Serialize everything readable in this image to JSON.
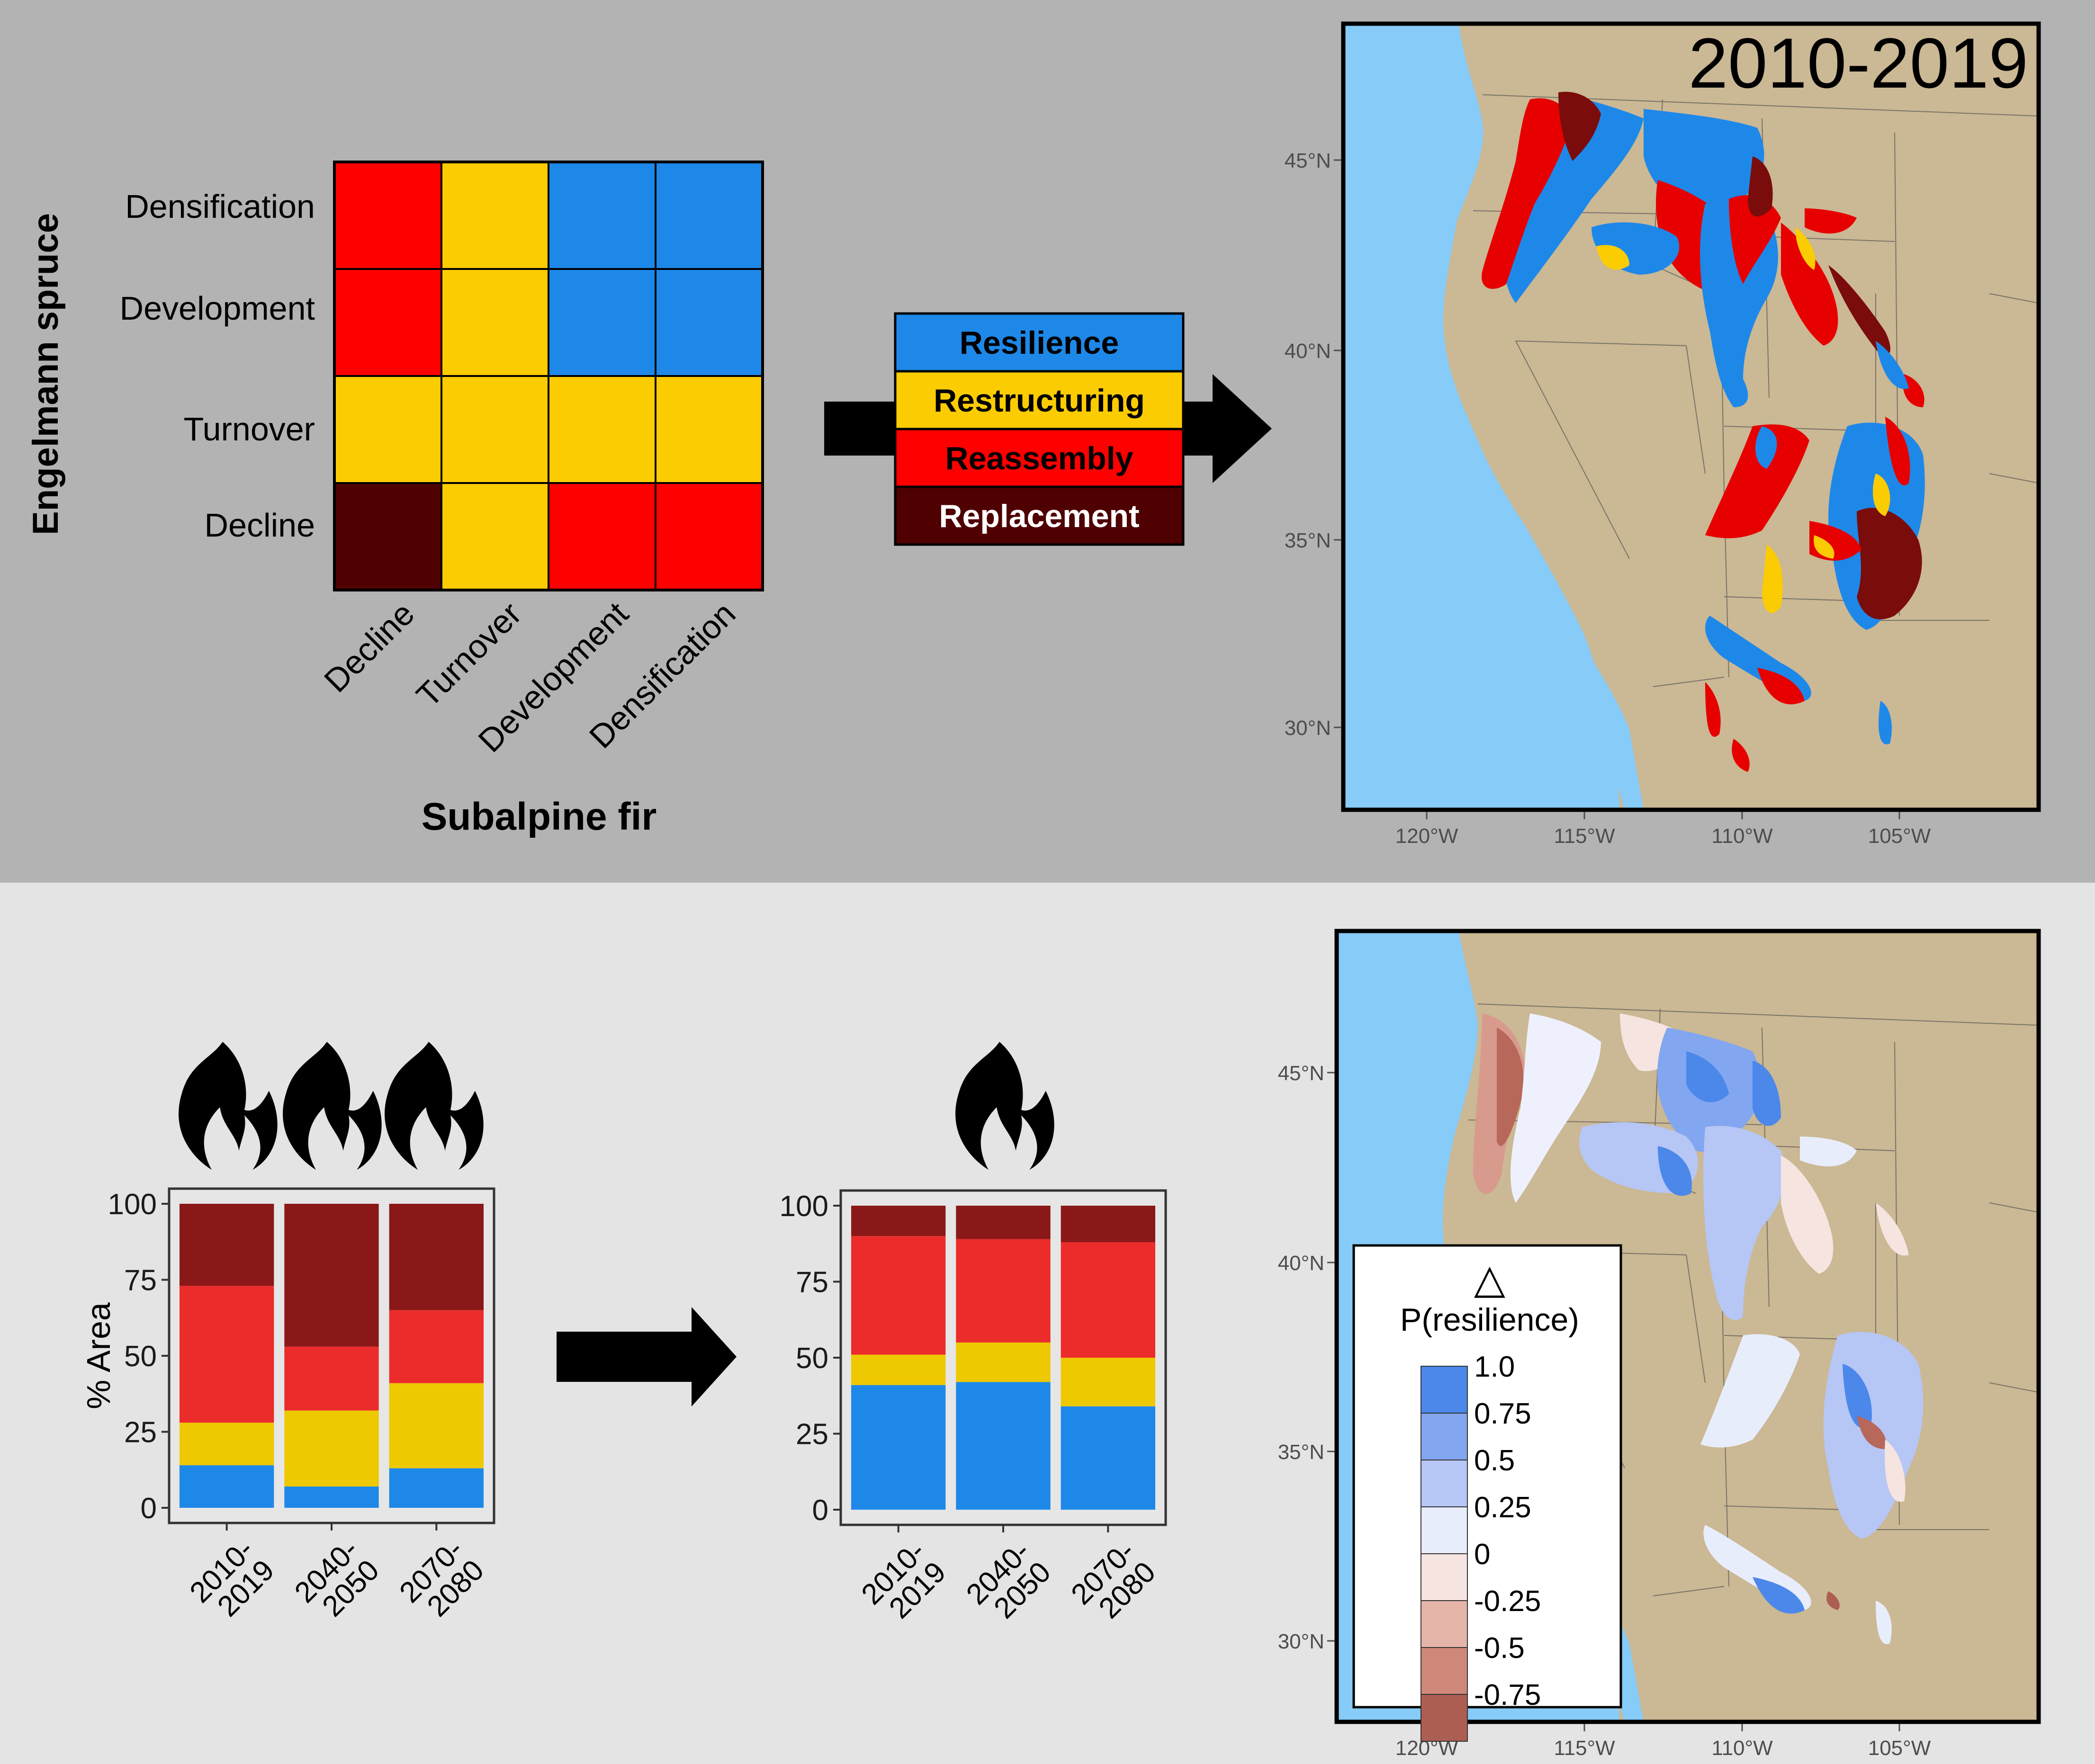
{
  "colors": {
    "resilience": "#1e88e9",
    "restructuring": "#fccc03",
    "reassembly": "#ff0000",
    "replacement": "#4f0000",
    "bar_resilience": "#1e88e9",
    "bar_restructuring": "#eec800",
    "bar_reassembly": "#ec2b2b",
    "bar_replacement": "#8b1818",
    "ocean": "#87cbf8",
    "land": "#cbb894"
  },
  "matrix": {
    "y_title": "Engelmann spruce",
    "x_title": "Subalpine fir",
    "row_labels": [
      "Densification",
      "Development",
      "Turnover",
      "Decline"
    ],
    "col_labels": [
      "Decline",
      "Turnover",
      "Development",
      "Densification"
    ],
    "cells": [
      [
        "reassembly",
        "restructuring",
        "resilience",
        "resilience"
      ],
      [
        "reassembly",
        "restructuring",
        "resilience",
        "resilience"
      ],
      [
        "restructuring",
        "restructuring",
        "restructuring",
        "restructuring"
      ],
      [
        "replacement",
        "restructuring",
        "reassembly",
        "reassembly"
      ]
    ]
  },
  "legend": {
    "items": [
      {
        "label": "Resilience",
        "key": "resilience",
        "text_color": "#000000"
      },
      {
        "label": "Restructuring",
        "key": "restructuring",
        "text_color": "#000000"
      },
      {
        "label": "Reassembly",
        "key": "reassembly",
        "text_color": "#000000"
      },
      {
        "label": "Replacement",
        "key": "replacement",
        "text_color": "#ffffff"
      }
    ]
  },
  "map_top": {
    "title": "2010-2019",
    "lat_labels": [
      "45°N",
      "40°N",
      "35°N",
      "30°N"
    ],
    "lon_labels": [
      "120°W",
      "115°W",
      "110°W",
      "105°W"
    ]
  },
  "map_bottom": {
    "lat_labels": [
      "45°N",
      "40°N",
      "35°N",
      "30°N"
    ],
    "lon_labels": [
      "120°W",
      "115°W",
      "110°W",
      "105°W"
    ],
    "legend_symbol": "△",
    "legend_title": "P(resilience)",
    "legend_values": [
      "1.0",
      "0.75",
      "0.5",
      "0.25",
      "0",
      "-0.25",
      "-0.5",
      "-0.75"
    ],
    "legend_colors": [
      "#4b88ea",
      "#82a6f0",
      "#b6c6f5",
      "#e8edfc",
      "#f6e4e0",
      "#e6b5aa",
      "#cf8779",
      "#ad5e52"
    ]
  },
  "chart_data": [
    {
      "type": "bar",
      "stacked": true,
      "ylabel": "% Area",
      "ylim": [
        0,
        100
      ],
      "yticks": [
        "0",
        "25",
        "50",
        "75",
        "100"
      ],
      "categories": [
        "2010-2019",
        "2040-2050",
        "2070-2080"
      ],
      "category_lines": [
        [
          "2010-",
          "2019"
        ],
        [
          "2040-",
          "2050"
        ],
        [
          "2070-",
          "2080"
        ]
      ],
      "fire_icons": 3,
      "series": [
        {
          "key": "resilience",
          "values": [
            14,
            7,
            13
          ]
        },
        {
          "key": "restructuring",
          "values": [
            14,
            25,
            28
          ]
        },
        {
          "key": "reassembly",
          "values": [
            45,
            21,
            24
          ]
        },
        {
          "key": "replacement",
          "values": [
            27,
            47,
            35
          ]
        }
      ]
    },
    {
      "type": "bar",
      "stacked": true,
      "ylabel": "",
      "ylim": [
        0,
        100
      ],
      "yticks": [
        "0",
        "25",
        "50",
        "75",
        "100"
      ],
      "categories": [
        "2010-2019",
        "2040-2050",
        "2070-2080"
      ],
      "category_lines": [
        [
          "2010-",
          "2019"
        ],
        [
          "2040-",
          "2050"
        ],
        [
          "2070-",
          "2080"
        ]
      ],
      "fire_icons": 1,
      "series": [
        {
          "key": "resilience",
          "values": [
            41,
            42,
            34
          ]
        },
        {
          "key": "restructuring",
          "values": [
            10,
            13,
            16
          ]
        },
        {
          "key": "reassembly",
          "values": [
            39,
            34,
            38
          ]
        },
        {
          "key": "replacement",
          "values": [
            10,
            11,
            12
          ]
        }
      ]
    }
  ]
}
